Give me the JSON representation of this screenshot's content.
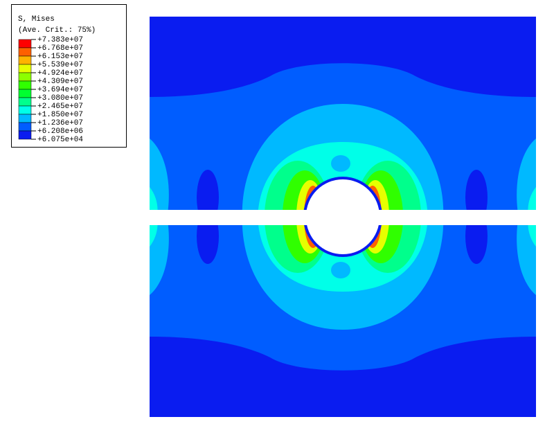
{
  "legend": {
    "title": "S, Mises",
    "subtitle": "(Ave. Crit.: 75%)",
    "levels": [
      "+7.383e+07",
      "+6.768e+07",
      "+6.153e+07",
      "+5.539e+07",
      "+4.924e+07",
      "+4.309e+07",
      "+3.694e+07",
      "+3.080e+07",
      "+2.465e+07",
      "+1.850e+07",
      "+1.236e+07",
      "+6.208e+06",
      "+6.075e+04"
    ],
    "colors": [
      "#ff0000",
      "#ff6000",
      "#ffb300",
      "#e6ff00",
      "#8cff00",
      "#30ff00",
      "#00ff30",
      "#00ff8c",
      "#00ffe8",
      "#00b9ff",
      "#005dff",
      "#0a1cf0"
    ]
  }
}
